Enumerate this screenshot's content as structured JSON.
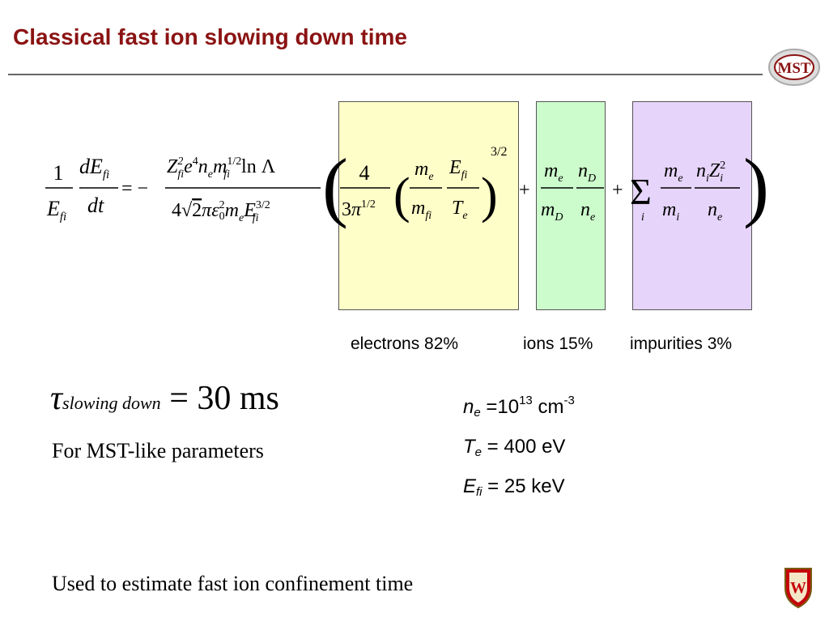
{
  "slide": {
    "title": "Classical fast ion slowing down time",
    "logo_text": "MST",
    "crest_letter": "W"
  },
  "equation": {
    "one": "1",
    "lhs_num": "dE",
    "lhs_num_sub": "fi",
    "lhs_den_E": "E",
    "lhs_den_sub": "fi",
    "dt": "dt",
    "eq_sign": "= −",
    "prefactor_num": "Z²fi e⁴ nₑ m¹ᐟ²fi ln Λ",
    "prefactor_den": "4√2 π ε²₀ mₑ E³ᐟ²fi",
    "electron_term": "4 / 3π^1/2 (mₑ/m_fi · E_fi/Tₑ)^3/2",
    "ion_term": "mₑ/m_D · n_D/nₑ",
    "impurity_term": "Σᵢ mₑ/mᵢ · nᵢZᵢ²/nₑ",
    "plus": "+",
    "exp_3_2": "3/2",
    "four": "4"
  },
  "labels": {
    "electrons": "electrons 82%",
    "ions": "ions 15%",
    "impurities": "impurities 3%"
  },
  "result": {
    "tau": "τ",
    "subscript": "slowing  down",
    "value": "= 30 ms",
    "caption": "For MST-like parameters"
  },
  "parameters": {
    "ne_sym": "n",
    "ne_sub": "e",
    "ne_eq": " =10",
    "ne_exp": "13",
    "ne_unit": " cm",
    "ne_unit_exp": "-3",
    "te_sym": "T",
    "te_sub": "e",
    "te_val": " = 400 eV",
    "efi_sym": "E",
    "efi_sub": "fi",
    "efi_val": " = 25 keV"
  },
  "footer": {
    "text": "Used to estimate fast ion confinement time"
  },
  "colors": {
    "title": "#8b1313",
    "electron_box": "#fefec8",
    "ion_box": "#ccfccc",
    "impurity_box": "#e6d4fa"
  }
}
